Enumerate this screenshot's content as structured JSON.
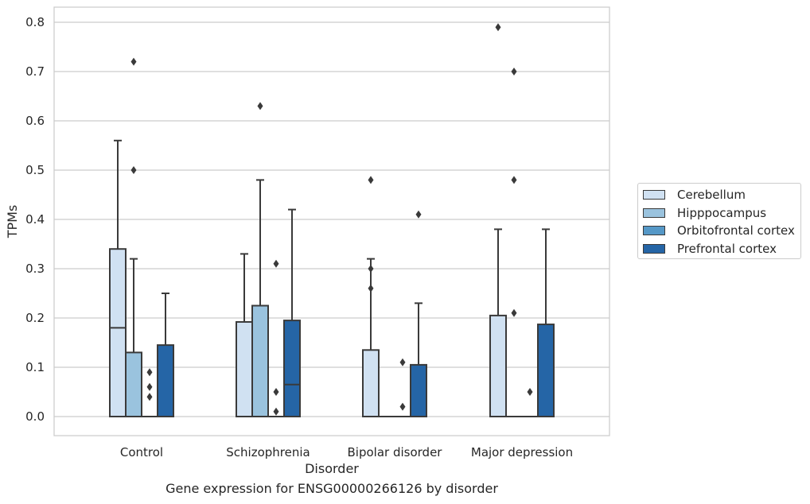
{
  "chart_data": {
    "type": "box",
    "title": "Gene expression for ENSG00000266126 by disorder",
    "xlabel": "Disorder",
    "ylabel": "TPMs",
    "ylim": [
      -0.04,
      0.83
    ],
    "yticks": [
      "0.0",
      "0.1",
      "0.2",
      "0.3",
      "0.4",
      "0.5",
      "0.6",
      "0.7",
      "0.8"
    ],
    "categories": [
      "Control",
      "Schizophrenia",
      "Bipolar disorder",
      "Major depression"
    ],
    "grid": "horizontal",
    "legend_position": "right",
    "series": [
      {
        "name": "Cerebellum",
        "color": "#d0e1f2",
        "boxes": [
          {
            "q1": 0.0,
            "median": 0.18,
            "q3": 0.34,
            "whisker_low": 0.0,
            "whisker_high": 0.56,
            "outliers": []
          },
          {
            "q1": 0.0,
            "median": 0.0,
            "q3": 0.192,
            "whisker_low": 0.0,
            "whisker_high": 0.33,
            "outliers": []
          },
          {
            "q1": 0.0,
            "median": 0.0,
            "q3": 0.135,
            "whisker_low": 0.0,
            "whisker_high": 0.32,
            "outliers": [
              0.26,
              0.3,
              0.48
            ]
          },
          {
            "q1": 0.0,
            "median": 0.0,
            "q3": 0.205,
            "whisker_low": 0.0,
            "whisker_high": 0.38,
            "outliers": [
              0.79
            ]
          }
        ]
      },
      {
        "name": "Hipppocampus",
        "color": "#9ac3de",
        "boxes": [
          {
            "q1": 0.0,
            "median": 0.0,
            "q3": 0.13,
            "whisker_low": 0.0,
            "whisker_high": 0.32,
            "outliers": [
              0.5,
              0.72
            ]
          },
          {
            "q1": 0.0,
            "median": 0.0,
            "q3": 0.225,
            "whisker_low": 0.0,
            "whisker_high": 0.48,
            "outliers": [
              0.63
            ]
          },
          {
            "q1": 0.0,
            "median": 0.0,
            "q3": 0.0,
            "whisker_low": 0.0,
            "whisker_high": 0.0,
            "outliers": []
          },
          {
            "q1": 0.0,
            "median": 0.0,
            "q3": 0.0,
            "whisker_low": 0.0,
            "whisker_high": 0.0,
            "outliers": [
              0.21,
              0.48,
              0.7
            ]
          }
        ]
      },
      {
        "name": "Orbitofrontal cortex",
        "color": "#5598c7",
        "boxes": [
          {
            "q1": 0.0,
            "median": 0.0,
            "q3": 0.0,
            "whisker_low": 0.0,
            "whisker_high": 0.0,
            "outliers": [
              0.04,
              0.06,
              0.09
            ]
          },
          {
            "q1": 0.0,
            "median": 0.0,
            "q3": 0.0,
            "whisker_low": 0.0,
            "whisker_high": 0.0,
            "outliers": [
              0.01,
              0.05,
              0.31
            ]
          },
          {
            "q1": 0.0,
            "median": 0.0,
            "q3": 0.0,
            "whisker_low": 0.0,
            "whisker_high": 0.0,
            "outliers": [
              0.02,
              0.11
            ]
          },
          {
            "q1": 0.0,
            "median": 0.0,
            "q3": 0.0,
            "whisker_low": 0.0,
            "whisker_high": 0.0,
            "outliers": [
              0.05
            ]
          }
        ]
      },
      {
        "name": "Prefrontal cortex",
        "color": "#2565a6",
        "boxes": [
          {
            "q1": 0.0,
            "median": 0.0,
            "q3": 0.145,
            "whisker_low": 0.0,
            "whisker_high": 0.25,
            "outliers": []
          },
          {
            "q1": 0.0,
            "median": 0.065,
            "q3": 0.195,
            "whisker_low": 0.0,
            "whisker_high": 0.42,
            "outliers": []
          },
          {
            "q1": 0.0,
            "median": 0.0,
            "q3": 0.105,
            "whisker_low": 0.0,
            "whisker_high": 0.23,
            "outliers": [
              0.41
            ]
          },
          {
            "q1": 0.0,
            "median": 0.0,
            "q3": 0.187,
            "whisker_low": 0.0,
            "whisker_high": 0.38,
            "outliers": []
          }
        ]
      }
    ]
  }
}
